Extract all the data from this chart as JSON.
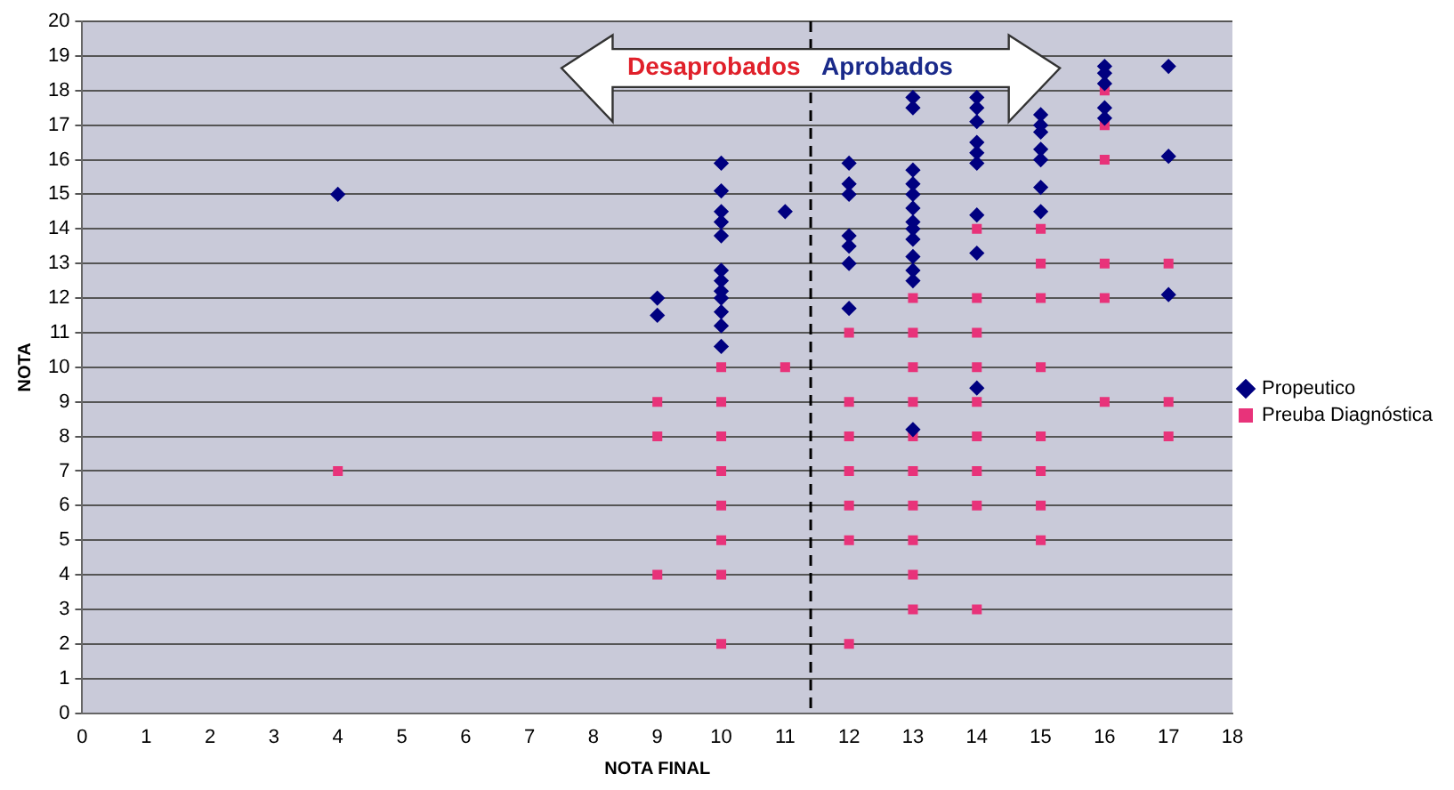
{
  "chart_data": {
    "type": "scatter",
    "xlabel": "NOTA FINAL",
    "ylabel": "NOTA",
    "xlim": [
      0,
      18
    ],
    "xticks": [
      0,
      1,
      2,
      3,
      4,
      5,
      6,
      7,
      8,
      9,
      10,
      11,
      12,
      13,
      14,
      15,
      16,
      17,
      18
    ],
    "ylim": [
      0,
      20
    ],
    "yticks": [
      0,
      1,
      2,
      3,
      4,
      5,
      6,
      7,
      8,
      9,
      10,
      11,
      12,
      13,
      14,
      15,
      16,
      17,
      18,
      19,
      20
    ],
    "grid": "y",
    "legend": "right",
    "annotations": [
      "Desaprobados",
      "Aprobados"
    ],
    "ref_lines": [
      {
        "axis": "x",
        "value": 11.4,
        "color": "#000000",
        "line_style": "dashed"
      }
    ],
    "series": [
      {
        "name": "Propeutico",
        "color": "#000080",
        "marker": "diamond",
        "x": [
          4,
          9,
          9,
          10,
          10,
          10,
          10,
          10,
          10,
          10,
          10,
          10,
          10,
          10,
          10,
          11,
          12,
          12,
          12,
          12,
          12,
          12,
          12,
          13,
          13,
          13,
          13,
          13,
          13,
          13,
          13,
          13,
          13,
          13,
          13,
          13,
          14,
          14,
          14,
          14,
          14,
          14,
          14,
          14,
          14,
          15,
          15,
          15,
          15,
          15,
          15,
          15,
          16,
          16,
          16,
          16,
          16,
          17,
          17,
          17
        ],
        "values": [
          15,
          12,
          11.5,
          15.9,
          15.1,
          14.5,
          14.2,
          13.8,
          12.8,
          12.5,
          12.2,
          12,
          11.6,
          11.2,
          10.6,
          14.5,
          15.9,
          15.3,
          15,
          13.8,
          13.5,
          13,
          11.7,
          17.8,
          17.5,
          15.7,
          15.3,
          15,
          14.6,
          14.2,
          14,
          13.7,
          13.2,
          12.8,
          12.5,
          8.2,
          17.8,
          17.5,
          17.1,
          16.5,
          16.2,
          15.9,
          14.4,
          13.3,
          9.4,
          17.3,
          17,
          16.8,
          16.3,
          16,
          15.2,
          14.5,
          18.7,
          18.5,
          18.2,
          17.5,
          17.2,
          18.7,
          16.1,
          12.1
        ]
      },
      {
        "name": "Preuba Diagnóstica",
        "color": "#e8337a",
        "marker": "square",
        "x": [
          4,
          9,
          9,
          9,
          10,
          10,
          10,
          10,
          10,
          10,
          10,
          10,
          11,
          12,
          12,
          12,
          12,
          12,
          12,
          12,
          13,
          13,
          13,
          13,
          13,
          13,
          13,
          13,
          13,
          13,
          14,
          14,
          14,
          14,
          14,
          14,
          14,
          14,
          14,
          15,
          15,
          15,
          15,
          15,
          15,
          15,
          15,
          16,
          16,
          16,
          16,
          16,
          16,
          17,
          17,
          17
        ],
        "values": [
          7,
          9,
          8,
          4,
          10,
          9,
          8,
          7,
          6,
          5,
          4,
          2,
          10,
          11,
          9,
          8,
          7,
          6,
          5,
          2,
          12,
          11,
          10,
          9,
          8,
          7,
          6,
          5,
          4,
          3,
          14,
          12,
          11,
          10,
          9,
          8,
          7,
          6,
          3,
          14,
          13,
          12,
          10,
          8,
          7,
          6,
          5,
          18,
          17,
          16,
          13,
          12,
          9,
          13,
          9,
          8
        ]
      }
    ]
  }
}
